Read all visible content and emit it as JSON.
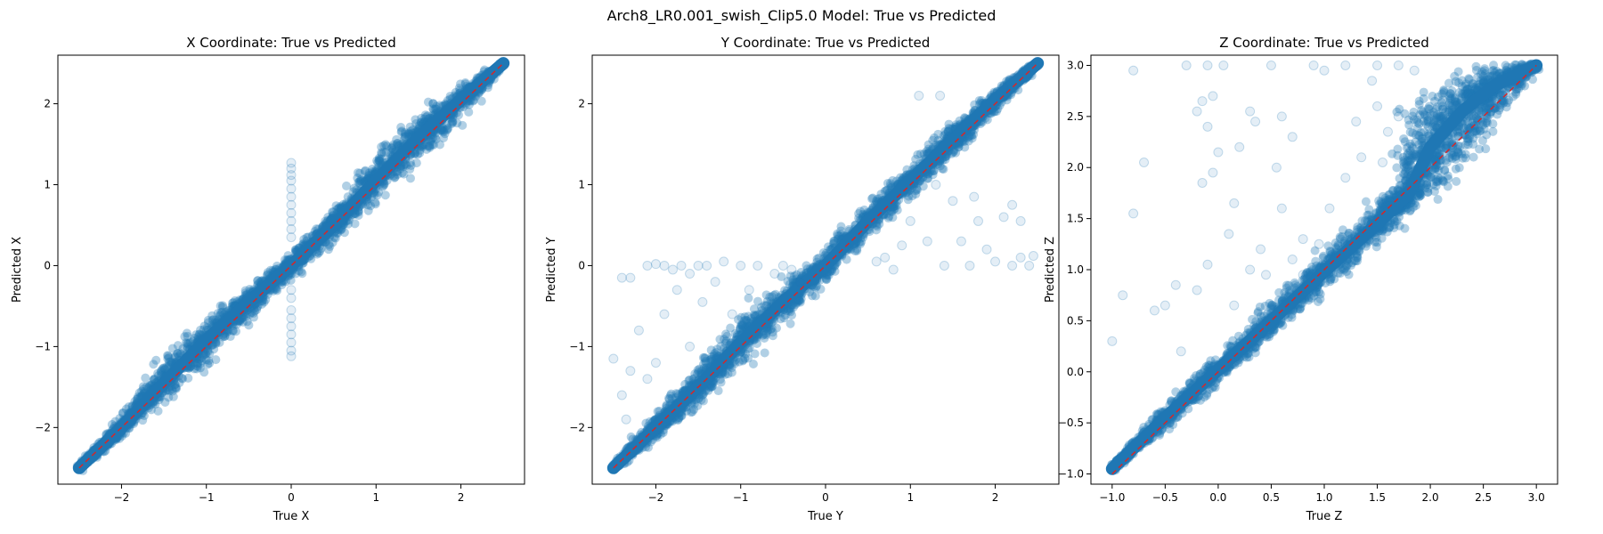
{
  "figure": {
    "suptitle": "Arch8_LR0.001_swish_Clip5.0 Model: True vs Predicted"
  },
  "colors": {
    "points": "#1f77b4",
    "ideal_line": "#d62728",
    "axes": "#000000",
    "background": "#ffffff"
  },
  "chart_data": [
    {
      "type": "scatter",
      "title": "X Coordinate: True vs Predicted",
      "xlabel": "True X",
      "ylabel": "Predicted X",
      "xlim": [
        -2.75,
        2.75
      ],
      "ylim": [
        -2.7,
        2.6
      ],
      "xticks": [
        -2,
        -1,
        0,
        1,
        2
      ],
      "yticks": [
        -2,
        -1,
        0,
        1,
        2
      ],
      "tick_labels_x": [
        "−2",
        "−1",
        "0",
        "1",
        "2"
      ],
      "tick_labels_y": [
        "−2",
        "−1",
        "0",
        "1",
        "2"
      ],
      "grid": false,
      "series": [
        {
          "kind": "points",
          "color": "#1f77b4",
          "alpha": 0.12,
          "band": [
            [
              -2.5,
              -2.5,
              0.05
            ],
            [
              -2.0,
              -2.0,
              0.12
            ],
            [
              -1.5,
              -1.45,
              0.25
            ],
            [
              -1.0,
              -0.92,
              0.3
            ],
            [
              -0.5,
              -0.45,
              0.2
            ],
            [
              0.0,
              0.0,
              0.15
            ],
            [
              0.5,
              0.5,
              0.2
            ],
            [
              1.0,
              1.05,
              0.28
            ],
            [
              1.5,
              1.58,
              0.3
            ],
            [
              2.0,
              2.05,
              0.2
            ],
            [
              2.5,
              2.5,
              0.05
            ]
          ],
          "outliers": [
            [
              0.0,
              1.27
            ],
            [
              0.0,
              1.2
            ],
            [
              0.0,
              1.12
            ],
            [
              0.0,
              1.05
            ],
            [
              0.0,
              0.95
            ],
            [
              0.0,
              0.85
            ],
            [
              0.0,
              0.75
            ],
            [
              0.0,
              0.65
            ],
            [
              0.0,
              0.55
            ],
            [
              0.0,
              0.45
            ],
            [
              0.0,
              0.35
            ],
            [
              0.0,
              -0.3
            ],
            [
              0.0,
              -0.4
            ],
            [
              0.0,
              -0.55
            ],
            [
              0.0,
              -0.65
            ],
            [
              0.0,
              -0.75
            ],
            [
              0.0,
              -0.85
            ],
            [
              0.0,
              -0.95
            ],
            [
              0.0,
              -1.05
            ],
            [
              0.0,
              -1.12
            ]
          ]
        },
        {
          "kind": "line",
          "color": "#d62728",
          "style": "dashed",
          "x": [
            -2.5,
            2.5
          ],
          "y": [
            -2.5,
            2.5
          ]
        }
      ]
    },
    {
      "type": "scatter",
      "title": "Y Coordinate: True vs Predicted",
      "xlabel": "True Y",
      "ylabel": "Predicted Y",
      "xlim": [
        -2.75,
        2.75
      ],
      "ylim": [
        -2.7,
        2.6
      ],
      "xticks": [
        -2,
        -1,
        0,
        1,
        2
      ],
      "yticks": [
        -2,
        -1,
        0,
        1,
        2
      ],
      "tick_labels_x": [
        "−2",
        "−1",
        "0",
        "1",
        "2"
      ],
      "tick_labels_y": [
        "−2",
        "−1",
        "0",
        "1",
        "2"
      ],
      "grid": false,
      "series": [
        {
          "kind": "points",
          "color": "#1f77b4",
          "alpha": 0.12,
          "band": [
            [
              -2.5,
              -2.5,
              0.05
            ],
            [
              -2.0,
              -2.0,
              0.15
            ],
            [
              -1.5,
              -1.5,
              0.25
            ],
            [
              -1.0,
              -0.95,
              0.3
            ],
            [
              -0.5,
              -0.45,
              0.25
            ],
            [
              0.0,
              0.0,
              0.2
            ],
            [
              0.5,
              0.55,
              0.2
            ],
            [
              1.0,
              1.05,
              0.2
            ],
            [
              1.5,
              1.55,
              0.2
            ],
            [
              2.0,
              2.05,
              0.15
            ],
            [
              2.5,
              2.5,
              0.05
            ]
          ],
          "outliers": [
            [
              -2.4,
              -0.15
            ],
            [
              -2.3,
              -0.15
            ],
            [
              -2.1,
              0.0
            ],
            [
              -2.0,
              0.02
            ],
            [
              -1.9,
              0.0
            ],
            [
              -1.8,
              -0.05
            ],
            [
              -1.75,
              -0.3
            ],
            [
              -1.7,
              0.0
            ],
            [
              -1.6,
              -0.1
            ],
            [
              -1.5,
              0.0
            ],
            [
              -1.45,
              -0.45
            ],
            [
              -1.4,
              0.0
            ],
            [
              -1.3,
              -0.2
            ],
            [
              -1.2,
              0.05
            ],
            [
              -1.1,
              -0.6
            ],
            [
              -1.0,
              0.0
            ],
            [
              -0.9,
              -0.3
            ],
            [
              -0.8,
              0.0
            ],
            [
              -0.7,
              -0.5
            ],
            [
              -0.6,
              -0.1
            ],
            [
              -0.5,
              0.0
            ],
            [
              -0.4,
              -0.05
            ],
            [
              -0.3,
              -0.2
            ],
            [
              -2.2,
              -0.8
            ],
            [
              -2.0,
              -1.2
            ],
            [
              -2.4,
              -1.6
            ],
            [
              -2.3,
              -1.3
            ],
            [
              -1.9,
              -0.6
            ],
            [
              -1.6,
              -1.0
            ],
            [
              -2.5,
              -1.15
            ],
            [
              -2.35,
              -1.9
            ],
            [
              -2.1,
              -1.4
            ],
            [
              1.0,
              0.55
            ],
            [
              1.2,
              0.3
            ],
            [
              1.4,
              0.0
            ],
            [
              1.5,
              0.8
            ],
            [
              1.6,
              0.3
            ],
            [
              1.7,
              0.0
            ],
            [
              1.8,
              0.55
            ],
            [
              1.9,
              0.2
            ],
            [
              2.0,
              0.05
            ],
            [
              2.1,
              0.6
            ],
            [
              2.2,
              0.0
            ],
            [
              2.3,
              0.1
            ],
            [
              2.4,
              0.0
            ],
            [
              2.45,
              0.12
            ],
            [
              1.3,
              1.0
            ],
            [
              1.1,
              2.1
            ],
            [
              0.6,
              0.05
            ],
            [
              0.8,
              -0.05
            ],
            [
              0.7,
              0.1
            ],
            [
              0.9,
              0.25
            ],
            [
              1.35,
              2.1
            ],
            [
              2.1,
              2.2
            ],
            [
              1.75,
              0.85
            ],
            [
              2.2,
              0.75
            ],
            [
              2.3,
              0.55
            ]
          ]
        },
        {
          "kind": "line",
          "color": "#d62728",
          "style": "dashed",
          "x": [
            -2.5,
            2.5
          ],
          "y": [
            -2.5,
            2.5
          ]
        }
      ]
    },
    {
      "type": "scatter",
      "title": "Z Coordinate: True vs Predicted",
      "xlabel": "True Z",
      "ylabel": "Predicted Z",
      "xlim": [
        -1.2,
        3.2
      ],
      "ylim": [
        -1.1,
        3.1
      ],
      "xticks": [
        -1.0,
        -0.5,
        0.0,
        0.5,
        1.0,
        1.5,
        2.0,
        2.5,
        3.0
      ],
      "yticks": [
        -1.0,
        -0.5,
        0.0,
        0.5,
        1.0,
        1.5,
        2.0,
        2.5,
        3.0
      ],
      "tick_labels_x": [
        "−1.0",
        "−0.5",
        "0.0",
        "0.5",
        "1.0",
        "1.5",
        "2.0",
        "2.5",
        "3.0"
      ],
      "tick_labels_y": [
        "−1.0",
        "−0.5",
        "0.0",
        "0.5",
        "1.0",
        "1.5",
        "2.0",
        "2.5",
        "3.0"
      ],
      "grid": false,
      "series": [
        {
          "kind": "points",
          "color": "#1f77b4",
          "alpha": 0.12,
          "band": [
            [
              -1.0,
              -0.95,
              0.05
            ],
            [
              -0.5,
              -0.45,
              0.12
            ],
            [
              0.0,
              0.02,
              0.15
            ],
            [
              0.5,
              0.5,
              0.18
            ],
            [
              1.0,
              0.98,
              0.2
            ],
            [
              1.5,
              1.45,
              0.2
            ],
            [
              1.8,
              1.75,
              0.2
            ],
            [
              2.0,
              2.2,
              0.55
            ],
            [
              2.3,
              2.55,
              0.45
            ],
            [
              2.6,
              2.8,
              0.3
            ],
            [
              3.0,
              3.0,
              0.05
            ]
          ],
          "outliers": [
            [
              -0.3,
              3.0
            ],
            [
              -0.1,
              3.0
            ],
            [
              0.05,
              3.0
            ],
            [
              0.5,
              3.0
            ],
            [
              0.9,
              3.0
            ],
            [
              1.2,
              3.0
            ],
            [
              1.5,
              3.0
            ],
            [
              1.7,
              3.0
            ],
            [
              -0.8,
              2.95
            ],
            [
              -0.15,
              2.65
            ],
            [
              -0.2,
              2.55
            ],
            [
              -0.05,
              2.7
            ],
            [
              -0.1,
              2.4
            ],
            [
              0.3,
              2.55
            ],
            [
              0.2,
              2.2
            ],
            [
              0.0,
              2.15
            ],
            [
              0.35,
              2.45
            ],
            [
              0.6,
              2.5
            ],
            [
              0.7,
              2.3
            ],
            [
              0.55,
              2.0
            ],
            [
              -0.05,
              1.95
            ],
            [
              -0.15,
              1.85
            ],
            [
              -0.7,
              2.05
            ],
            [
              0.15,
              1.65
            ],
            [
              0.6,
              1.6
            ],
            [
              0.8,
              1.3
            ],
            [
              0.4,
              1.2
            ],
            [
              0.1,
              1.35
            ],
            [
              0.3,
              1.0
            ],
            [
              -0.1,
              1.05
            ],
            [
              -0.2,
              0.8
            ],
            [
              -0.4,
              0.85
            ],
            [
              -0.5,
              0.65
            ],
            [
              -0.6,
              0.6
            ],
            [
              -0.8,
              1.55
            ],
            [
              -0.9,
              0.75
            ],
            [
              -1.0,
              0.3
            ],
            [
              -0.35,
              0.2
            ],
            [
              1.0,
              2.95
            ],
            [
              1.3,
              2.45
            ],
            [
              1.5,
              2.6
            ],
            [
              1.55,
              2.05
            ],
            [
              1.35,
              2.1
            ],
            [
              1.2,
              1.9
            ],
            [
              1.05,
              1.6
            ],
            [
              1.85,
              2.95
            ],
            [
              1.7,
              2.5
            ],
            [
              1.6,
              2.35
            ],
            [
              1.8,
              2.2
            ],
            [
              1.45,
              2.85
            ],
            [
              0.95,
              1.25
            ],
            [
              0.8,
              0.95
            ],
            [
              0.7,
              1.1
            ],
            [
              0.45,
              0.95
            ],
            [
              0.15,
              0.65
            ]
          ]
        },
        {
          "kind": "line",
          "color": "#d62728",
          "style": "dashed",
          "x": [
            -1.0,
            3.0
          ],
          "y": [
            -1.0,
            3.0
          ]
        }
      ]
    }
  ]
}
